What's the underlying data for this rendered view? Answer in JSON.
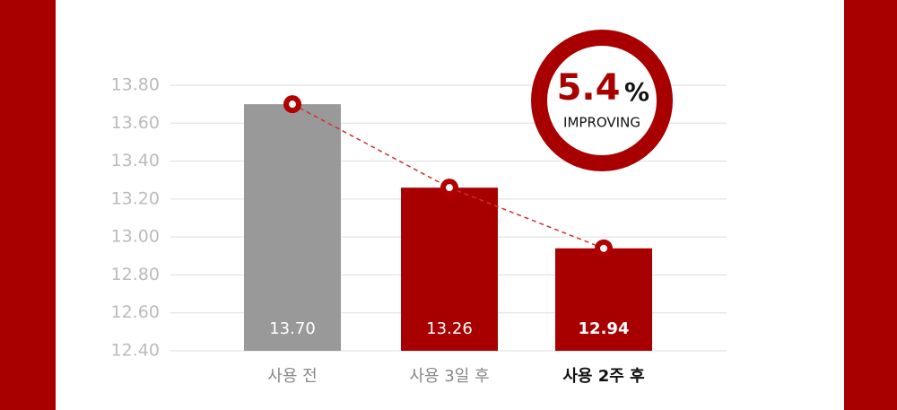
{
  "chart_data": {
    "type": "bar",
    "categories": [
      "사용 전",
      "사용 3일 후",
      "사용 2주 후"
    ],
    "values": [
      13.7,
      13.26,
      12.94
    ],
    "value_labels": [
      "13.70",
      "13.26",
      "12.94"
    ],
    "colors": [
      "#999999",
      "#a80000",
      "#a80000"
    ],
    "line_color": "#d0302f",
    "ylim": [
      12.4,
      13.8
    ],
    "yticks": [
      {
        "value": 12.4,
        "label": "12.40"
      },
      {
        "value": 12.6,
        "label": "12.60"
      },
      {
        "value": 12.8,
        "label": "12.80"
      },
      {
        "value": 13.0,
        "label": "13.00"
      },
      {
        "value": 13.2,
        "label": "13.20"
      },
      {
        "value": 13.4,
        "label": "13.40"
      },
      {
        "value": 13.6,
        "label": "13.60"
      },
      {
        "value": 13.8,
        "label": "13.80"
      }
    ],
    "grid": true,
    "badge": {
      "number": "5.4",
      "unit": "%",
      "text": "IMPROVING"
    }
  }
}
